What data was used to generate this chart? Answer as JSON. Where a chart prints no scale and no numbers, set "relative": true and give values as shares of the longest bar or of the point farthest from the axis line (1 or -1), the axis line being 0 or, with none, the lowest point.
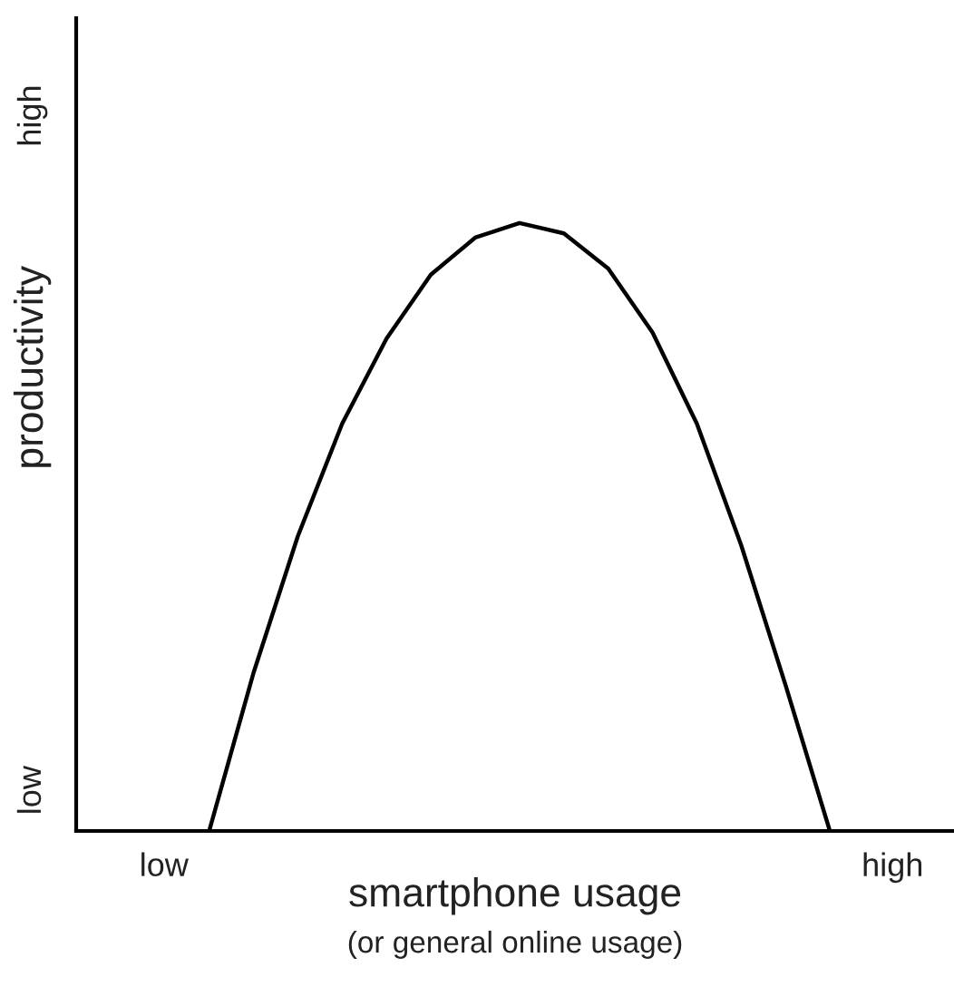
{
  "chart_data": {
    "type": "line",
    "relative": true,
    "xlabel": "smartphone usage",
    "ylabel": "productivity",
    "categories": [
      null,
      null,
      null,
      null,
      null,
      null,
      null,
      null,
      null,
      null,
      null,
      null,
      null,
      null,
      null
    ],
    "annotations": [
      "low",
      "high",
      "(or general online usage)",
      "low",
      "high"
    ],
    "marker": "none",
    "line_style": "solid",
    "series": [
      {
        "color": "#000000",
        "values": [
          0,
          0.26,
          0.485,
          0.67,
          0.81,
          0.915,
          0.976,
          1,
          0.983,
          0.925,
          0.82,
          0.67,
          0.47,
          0.24,
          0
        ]
      }
    ]
  }
}
